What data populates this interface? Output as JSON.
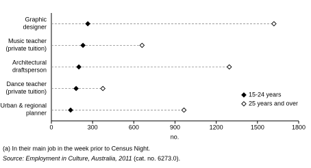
{
  "chart_data": {
    "type": "dot",
    "categories": [
      [
        "Graphic",
        "designer"
      ],
      [
        "Music teacher",
        "(private tuition)"
      ],
      [
        "Architectural",
        "draftsperson"
      ],
      [
        "Dance teacher",
        "(private tuition)"
      ],
      [
        "Urban & regional",
        "planner"
      ]
    ],
    "series": [
      {
        "name": "15-24 years",
        "color": "#000000",
        "marker": "filled-diamond",
        "values": [
          265,
          230,
          200,
          180,
          140
        ]
      },
      {
        "name": "25 years and over",
        "color": "#000000",
        "marker": "hollow-diamond",
        "values": [
          1620,
          660,
          1295,
          375,
          965
        ]
      }
    ],
    "xlim": [
      0,
      1800
    ],
    "xticks": [
      0,
      300,
      600,
      900,
      1200,
      1500,
      1800
    ],
    "xlabel": "no.",
    "legend": "lower right",
    "footnote": "(a) In their main job in the week prior to Census Night.",
    "source": {
      "italic": "Source: Employment in Culture, Australia, 2011",
      "plain": "(cat. no. 6273.0)."
    }
  }
}
